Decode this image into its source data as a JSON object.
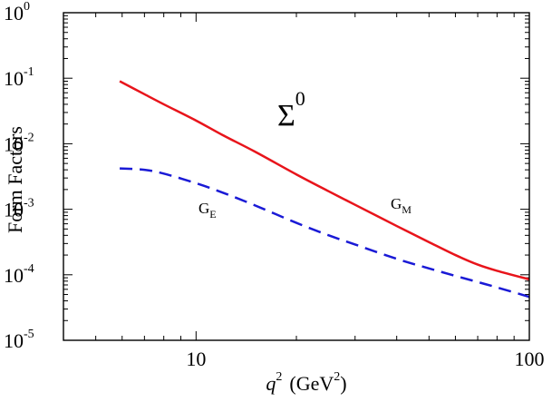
{
  "chart_data": {
    "type": "line",
    "x_scale": "log",
    "y_scale": "log",
    "xlim": [
      4,
      100
    ],
    "ylim": [
      1e-05,
      1
    ],
    "x_ticks": [
      {
        "value": 10,
        "label": "10"
      },
      {
        "value": 100,
        "label": "100"
      }
    ],
    "y_ticks": [
      {
        "value": 1,
        "base": "10",
        "exp": "0"
      },
      {
        "value": 0.1,
        "base": "10",
        "exp": "-1"
      },
      {
        "value": 0.01,
        "base": "10",
        "exp": "-2"
      },
      {
        "value": 0.001,
        "base": "10",
        "exp": "-3"
      },
      {
        "value": 0.0001,
        "base": "10",
        "exp": "-4"
      },
      {
        "value": 1e-05,
        "base": "10",
        "exp": "-5"
      }
    ],
    "xlabel": {
      "var": "q",
      "var_sup": "2",
      "unit_open": "(GeV",
      "unit_sup": "2",
      "unit_close": ")"
    },
    "ylabel": "Form Factors",
    "annotation": {
      "base": "Σ",
      "sup": "0"
    },
    "grid": false,
    "series": [
      {
        "name": "GM",
        "label_main": "G",
        "label_sub": "M",
        "color": "#e8141b",
        "dash": "solid",
        "x": [
          5.9,
          7,
          8,
          10,
          12,
          15,
          20,
          25,
          30,
          40,
          50,
          60,
          70,
          80,
          100
        ],
        "y": [
          0.09,
          0.057,
          0.04,
          0.0226,
          0.0136,
          0.0076,
          0.0034,
          0.00188,
          0.00117,
          0.000555,
          0.000315,
          0.0002,
          0.000143,
          0.000115,
          8.5e-05
        ]
      },
      {
        "name": "GE",
        "label_main": "G",
        "label_sub": "E",
        "color": "#1a1ad6",
        "dash": "dashed",
        "x": [
          5.9,
          7,
          8,
          10,
          12,
          15,
          20,
          25,
          30,
          40,
          50,
          60,
          70,
          80,
          100
        ],
        "y": [
          0.0042,
          0.004,
          0.0035,
          0.0025,
          0.0018,
          0.00115,
          0.00062,
          0.0004,
          0.00029,
          0.000175,
          0.000125,
          9.62e-05,
          7.75e-05,
          6.41e-05,
          4.6e-05
        ]
      }
    ]
  }
}
